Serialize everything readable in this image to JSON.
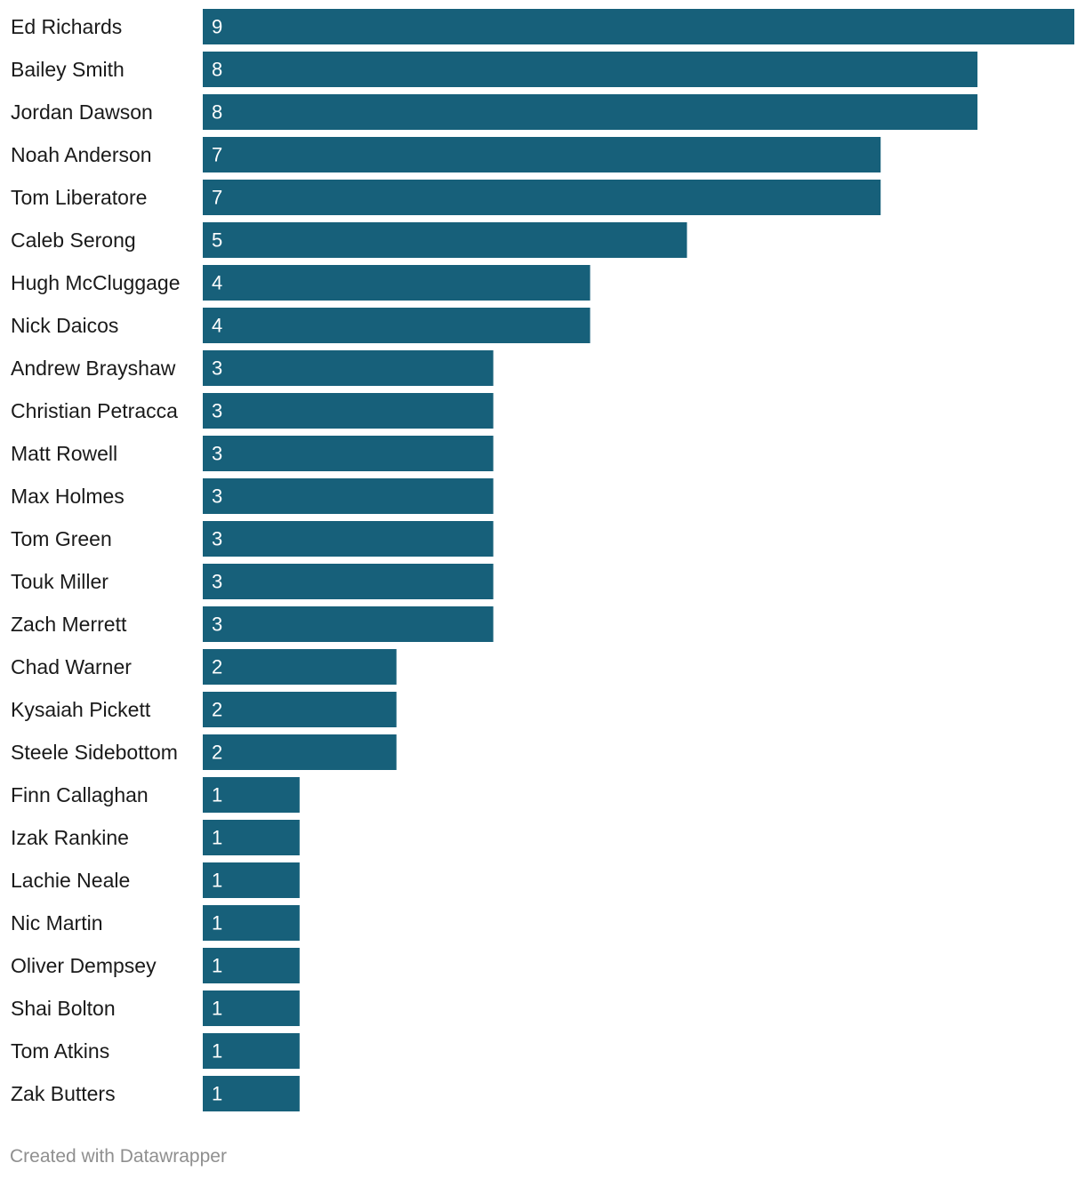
{
  "chart_data": {
    "type": "bar",
    "orientation": "horizontal",
    "categories": [
      "Ed Richards",
      "Bailey Smith",
      "Jordan Dawson",
      "Noah Anderson",
      "Tom Liberatore",
      "Caleb Serong",
      "Hugh McCluggage",
      "Nick Daicos",
      "Andrew Brayshaw",
      "Christian Petracca",
      "Matt Rowell",
      "Max Holmes",
      "Tom Green",
      "Touk Miller",
      "Zach Merrett",
      "Chad Warner",
      "Kysaiah Pickett",
      "Steele Sidebottom",
      "Finn Callaghan",
      "Izak Rankine",
      "Lachie Neale",
      "Nic Martin",
      "Oliver Dempsey",
      "Shai Bolton",
      "Tom Atkins",
      "Zak Butters"
    ],
    "values": [
      9,
      8,
      8,
      7,
      7,
      5,
      4,
      4,
      3,
      3,
      3,
      3,
      3,
      3,
      3,
      2,
      2,
      2,
      1,
      1,
      1,
      1,
      1,
      1,
      1,
      1
    ],
    "xlim": [
      0,
      9
    ],
    "grid": false,
    "data_labels": "inside-bar-start",
    "bar_color": "#17607a",
    "label_color": "#ffffff"
  },
  "footer": {
    "credit": "Created with Datawrapper"
  }
}
